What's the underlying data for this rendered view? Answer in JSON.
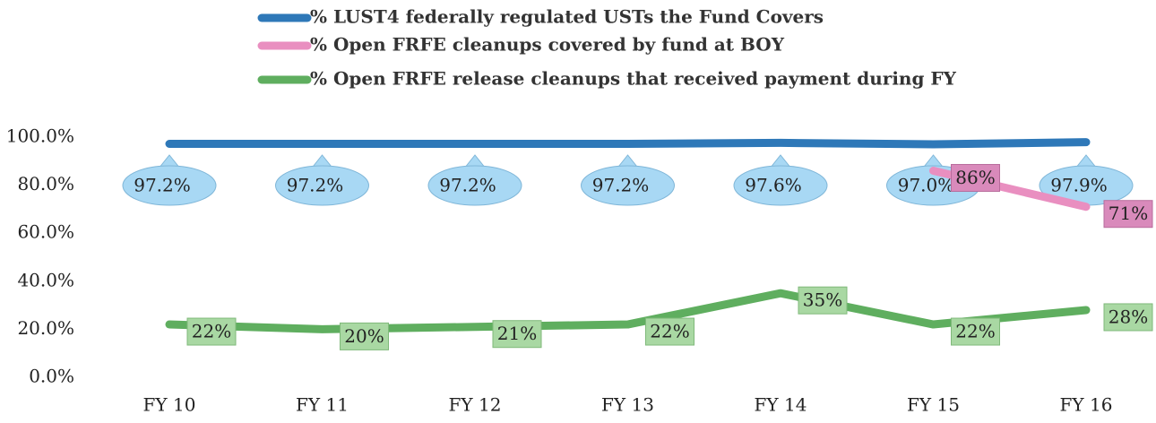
{
  "chart_data": {
    "type": "line",
    "categories": [
      "FY 10",
      "FY 11",
      "FY 12",
      "FY 13",
      "FY 14",
      "FY 15",
      "FY 16"
    ],
    "series": [
      {
        "name": "% LUST4  federally regulated USTs the Fund Covers",
        "color": "#2e78b8",
        "values": [
          97.2,
          97.2,
          97.2,
          97.2,
          97.6,
          97.0,
          97.9
        ],
        "value_labels": [
          "97.2%",
          "97.2%",
          "97.2%",
          "97.2%",
          "97.6%",
          "97.0%",
          "97.9%"
        ]
      },
      {
        "name": "% Open FRFE cleanups covered by fund at BOY",
        "color": "#e98fc0",
        "values": [
          null,
          null,
          null,
          null,
          null,
          86,
          71
        ],
        "value_labels": [
          null,
          null,
          null,
          null,
          null,
          "86%",
          "71%"
        ]
      },
      {
        "name": "% Open FRFE release cleanups that received payment during FY",
        "color": "#5fae5f",
        "values": [
          22,
          20,
          21,
          22,
          35,
          22,
          28
        ],
        "value_labels": [
          "22%",
          "20%",
          "21%",
          "22%",
          "35%",
          "22%",
          "28%"
        ]
      }
    ],
    "ylim": [
      0,
      100
    ],
    "yticks": [
      {
        "value": 0,
        "label": "0.0%"
      },
      {
        "value": 20,
        "label": "20.0%"
      },
      {
        "value": 40,
        "label": "40.0%"
      },
      {
        "value": 60,
        "label": "60.0%"
      },
      {
        "value": 80,
        "label": "80.0%"
      },
      {
        "value": 100,
        "label": "100.0%"
      }
    ],
    "grid": false
  }
}
